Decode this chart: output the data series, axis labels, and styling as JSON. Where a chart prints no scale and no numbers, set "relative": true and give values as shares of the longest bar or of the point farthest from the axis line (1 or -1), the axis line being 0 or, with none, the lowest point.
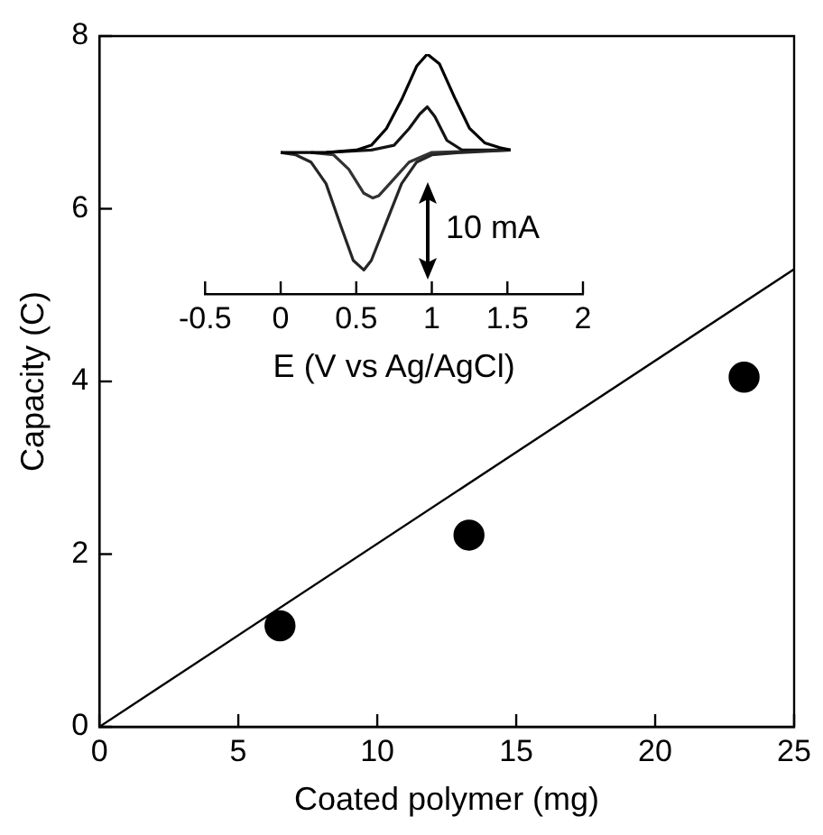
{
  "chart_data": [
    {
      "type": "scatter",
      "xlabel": "Coated polymer (mg)",
      "ylabel": "Capacity (C)",
      "xlim": [
        0,
        25
      ],
      "xticks": [
        0,
        5,
        10,
        15,
        20,
        25
      ],
      "ylim": [
        0,
        8
      ],
      "yticks": [
        0,
        2,
        4,
        6,
        8
      ],
      "grid": false,
      "legend": false,
      "marker": "circle",
      "series": [
        {
          "color": "#000000",
          "x": [
            6.5,
            13.3,
            23.2
          ],
          "values": [
            1.17,
            2.22,
            4.05
          ]
        },
        {
          "type": "line",
          "color": "#000000",
          "marker": "none",
          "x": [
            0,
            25
          ],
          "values": [
            0,
            5.3
          ]
        }
      ]
    },
    {
      "type": "line",
      "relative": true,
      "xlabel": "E (V vs Ag/AgCl)",
      "xlim": [
        -0.5,
        2
      ],
      "xticks": [
        -0.5,
        0,
        0.5,
        1,
        1.5,
        2
      ],
      "tick_labels": "x",
      "grid": false,
      "legend": false,
      "marker": "none",
      "annotations": [
        "10 mA"
      ],
      "series": [
        {
          "color": "#000000",
          "x": [
            0,
            0.3,
            0.5,
            0.6,
            0.7,
            0.8,
            0.9,
            0.97,
            1.05,
            1.15,
            1.25,
            1.35,
            1.45,
            1.52
          ],
          "values": [
            0.59,
            0.59,
            0.6,
            0.62,
            0.69,
            0.81,
            0.95,
            1.0,
            0.96,
            0.82,
            0.69,
            0.63,
            0.61,
            0.6
          ]
        },
        {
          "color": "#262626",
          "x": [
            0,
            0.1,
            0.2,
            0.3,
            0.4,
            0.48,
            0.55,
            0.6,
            0.7,
            0.8,
            0.9,
            1.0,
            1.2,
            1.52
          ],
          "values": [
            0.59,
            0.58,
            0.55,
            0.46,
            0.28,
            0.14,
            0.1,
            0.14,
            0.3,
            0.46,
            0.55,
            0.58,
            0.59,
            0.6
          ]
        },
        {
          "color": "#141414",
          "x": [
            0.3,
            0.6,
            0.75,
            0.85,
            0.92,
            0.97,
            1.02,
            1.1,
            1.2,
            1.4,
            1.52
          ],
          "values": [
            0.59,
            0.6,
            0.62,
            0.69,
            0.75,
            0.78,
            0.74,
            0.64,
            0.6,
            0.6,
            0.6
          ]
        },
        {
          "color": "#333333",
          "x": [
            0.2,
            0.35,
            0.45,
            0.55,
            0.61,
            0.65,
            0.75,
            0.85,
            1.0,
            1.52
          ],
          "values": [
            0.59,
            0.58,
            0.52,
            0.42,
            0.4,
            0.41,
            0.48,
            0.55,
            0.59,
            0.6
          ]
        }
      ]
    }
  ]
}
